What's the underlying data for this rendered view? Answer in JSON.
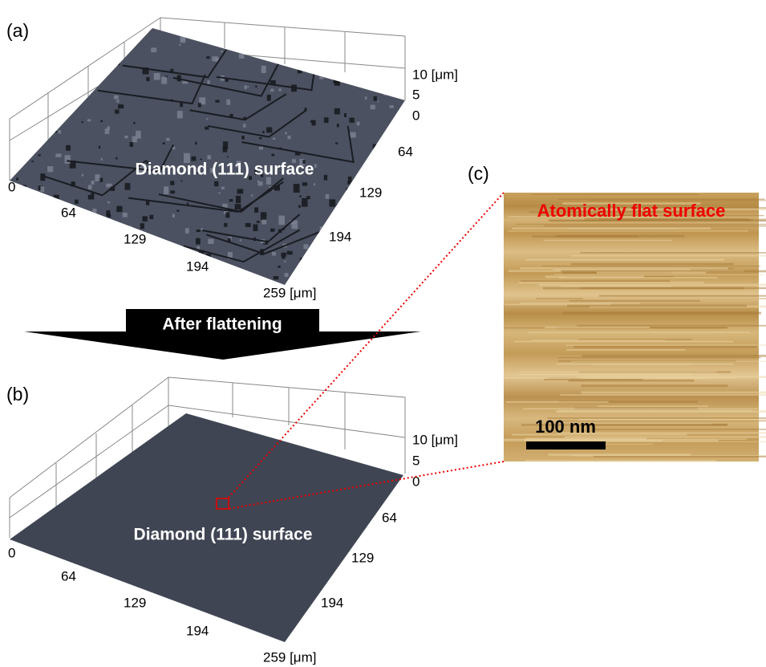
{
  "panel_a": {
    "label": "(a)",
    "caption": "Diamond (111) surface",
    "z_axis": [
      "10 [μm]",
      "5",
      "0"
    ],
    "x_axis": [
      "0",
      "64",
      "129",
      "194",
      "259 [μm]"
    ],
    "y_axis": [
      "64",
      "129",
      "194"
    ]
  },
  "arrow": {
    "label": "After flattening"
  },
  "panel_b": {
    "label": "(b)",
    "caption": "Diamond (111) surface",
    "z_axis": [
      "10 [μm]",
      "5",
      "0"
    ],
    "x_axis": [
      "0",
      "64",
      "129",
      "194",
      "259 [μm]"
    ],
    "y_axis": [
      "64",
      "129",
      "194"
    ]
  },
  "panel_c": {
    "label": "(c)",
    "title": "Atomically flat surface",
    "scale_bar": "100 nm"
  }
}
